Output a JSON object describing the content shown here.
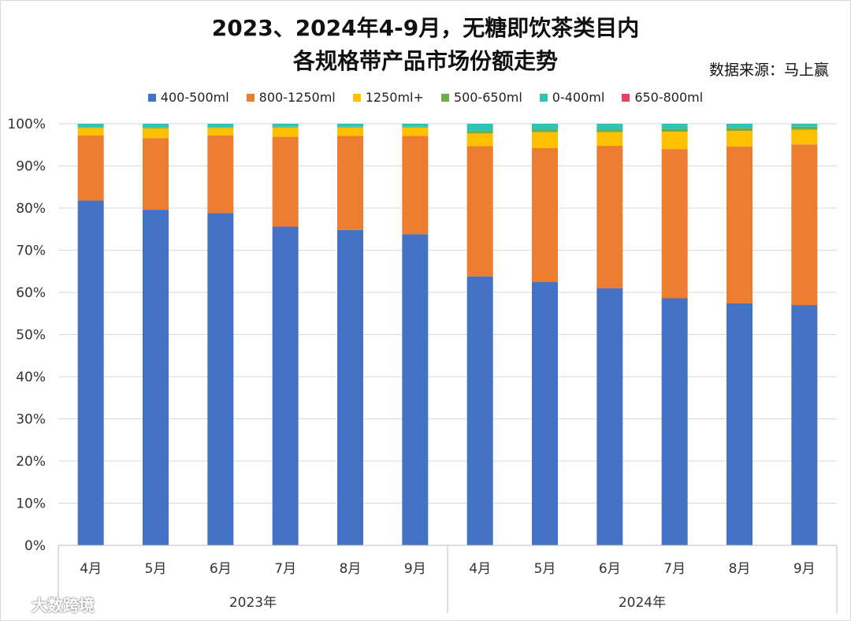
{
  "title_line1": "2023、2024年4-9月，无糖即饮茶类目内",
  "title_line2": "各规格带产品市场份额走势",
  "source": "数据来源：马上赢",
  "watermark": "大数跨境",
  "chart_data": {
    "type": "bar",
    "stacked": true,
    "title": "2023、2024年4-9月，无糖即饮茶类目内各规格带产品市场份额走势",
    "categories": [
      "4月",
      "5月",
      "6月",
      "7月",
      "8月",
      "9月",
      "4月",
      "5月",
      "6月",
      "7月",
      "8月",
      "9月"
    ],
    "groups": [
      {
        "label": "2023年",
        "start": 0,
        "end": 5
      },
      {
        "label": "2024年",
        "start": 6,
        "end": 11
      }
    ],
    "yticks": [
      "0%",
      "10%",
      "20%",
      "30%",
      "40%",
      "50%",
      "60%",
      "70%",
      "80%",
      "90%",
      "100%"
    ],
    "ylim": [
      0,
      100
    ],
    "legend_position": "top",
    "series": [
      {
        "name": "400-500ml",
        "color": "#4472C4",
        "values": [
          81.8,
          79.6,
          78.8,
          75.6,
          74.8,
          73.8,
          63.8,
          62.5,
          61.0,
          58.6,
          57.4,
          57.0
        ]
      },
      {
        "name": "800-1250ml",
        "color": "#ED7D31",
        "values": [
          15.4,
          17.0,
          18.4,
          21.3,
          22.3,
          23.3,
          30.9,
          31.7,
          33.8,
          35.4,
          37.2,
          38.1
        ]
      },
      {
        "name": "1250ml+",
        "color": "#FFC000",
        "values": [
          1.8,
          2.3,
          1.8,
          2.2,
          2.0,
          2.0,
          3.0,
          3.8,
          3.2,
          4.1,
          3.7,
          3.5
        ]
      },
      {
        "name": "500-650ml",
        "color": "#70AD47",
        "values": [
          0.2,
          0.2,
          0.2,
          0.2,
          0.2,
          0.2,
          0.6,
          0.6,
          0.6,
          0.7,
          0.7,
          0.7
        ]
      },
      {
        "name": "0-400ml",
        "color": "#2EC4B6",
        "values": [
          0.8,
          0.9,
          0.8,
          0.7,
          0.7,
          0.7,
          1.7,
          1.4,
          1.4,
          1.2,
          1.0,
          0.7
        ]
      },
      {
        "name": "650-800ml",
        "color": "#E8435A",
        "values": [
          0.0,
          0.0,
          0.0,
          0.0,
          0.0,
          0.0,
          0.0,
          0.0,
          0.0,
          0.0,
          0.0,
          0.0
        ]
      }
    ]
  }
}
